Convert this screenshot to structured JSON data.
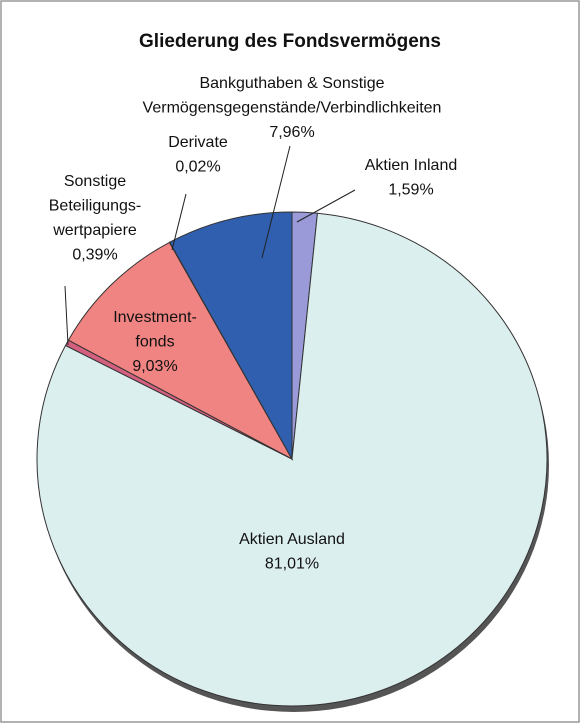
{
  "chart_data": {
    "type": "pie",
    "title": "Gliederung des Fondsvermögens",
    "categories": [
      [
        "Aktien Inland"
      ],
      [
        "Aktien Ausland"
      ],
      [
        "Sonstige",
        "Beteiligungs-",
        "wertpapiere"
      ],
      [
        "Investment-",
        "fonds"
      ],
      [
        "Derivate"
      ],
      [
        "Bankguthaben & Sonstige",
        "Vermögensgegenstände/Verbindlichkeiten"
      ]
    ],
    "values": [
      1.59,
      81.01,
      0.39,
      9.03,
      0.02,
      7.96
    ],
    "value_labels": [
      "1,59%",
      "81,01%",
      "0,39%",
      "9,03%",
      "0,02%",
      "7,96%"
    ],
    "colors": [
      "#9a9ad8",
      "#dcefef",
      "#d2607e",
      "#f08482",
      "#24408a",
      "#2f5fae"
    ]
  }
}
